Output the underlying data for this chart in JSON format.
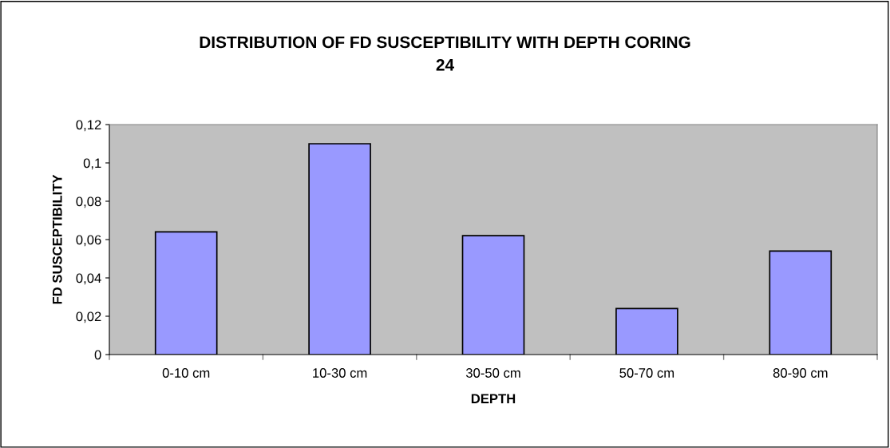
{
  "chart_data": {
    "type": "bar",
    "title": "DISTRIBUTION OF FD SUSCEPTIBILITY WITH DEPTH CORING\n24",
    "xlabel": "DEPTH",
    "ylabel": "FD SUSCEPTIBILITY",
    "categories": [
      "0-10 cm",
      "10-30 cm",
      "30-50 cm",
      "50-70 cm",
      "80-90 cm"
    ],
    "values": [
      0.064,
      0.11,
      0.062,
      0.024,
      0.054
    ],
    "color": "#9999ff",
    "ylim": [
      0,
      0.12
    ],
    "yticks": [
      0,
      {
        "value": 0.02,
        "label": "0,02"
      },
      {
        "value": 0.04,
        "label": "0,04"
      },
      {
        "value": 0.06,
        "label": "0,06"
      },
      {
        "value": 0.08,
        "label": "0,08"
      },
      {
        "value": 0.1,
        "label": "0,1"
      },
      {
        "value": 0.12,
        "label": "0,12"
      }
    ],
    "grid": false,
    "legend": false
  }
}
